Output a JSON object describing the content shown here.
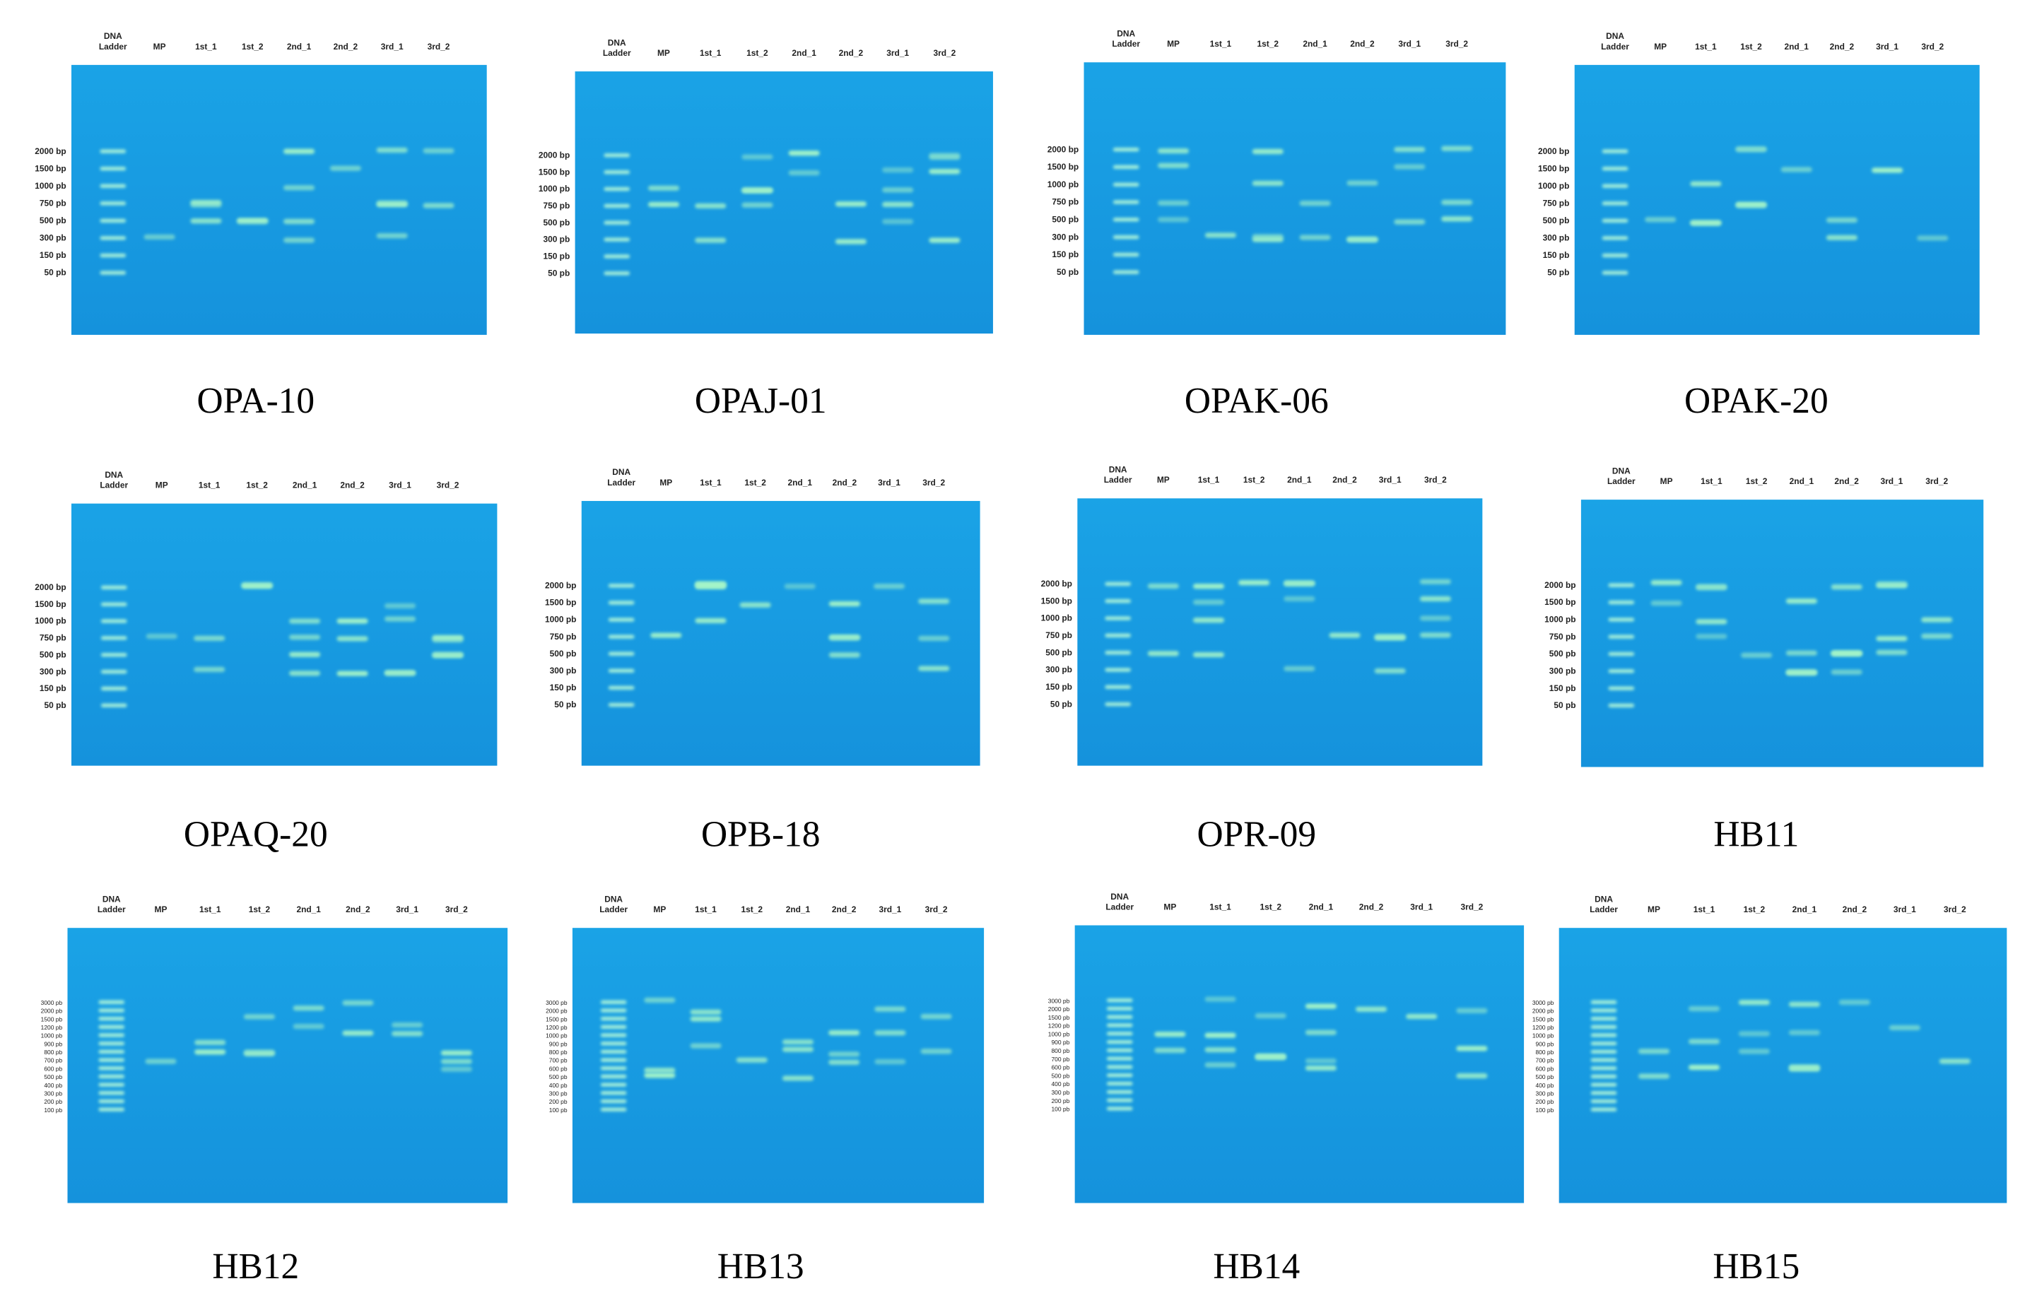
{
  "ladder_header": [
    "DNA",
    "Ladder"
  ],
  "panels": [
    {
      "caption": "OPA-10",
      "lanes": [
        "MP",
        "1st_1",
        "1st_2",
        "2nd_1",
        "2nd_2",
        "3rd_1",
        "3rd_2"
      ],
      "ladder": [
        "2000 bp",
        "1500 bp",
        "1000 pb",
        "750 pb",
        "500 pb",
        "300 pb",
        "150 pb",
        "50 pb"
      ]
    },
    {
      "caption": "OPAJ-01",
      "lanes": [
        "MP",
        "1st_1",
        "1st_2",
        "2nd_1",
        "2nd_2",
        "3rd_1",
        "3rd_2"
      ],
      "ladder": [
        "2000 bp",
        "1500 bp",
        "1000 pb",
        "750 pb",
        "500 pb",
        "300 pb",
        "150 pb",
        "50 pb"
      ]
    },
    {
      "caption": "OPAK-06",
      "lanes": [
        "MP",
        "1st_1",
        "1st_2",
        "2nd_1",
        "2nd_2",
        "3rd_1",
        "3rd_2"
      ],
      "ladder": [
        "2000 bp",
        "1500 bp",
        "1000 pb",
        "750 pb",
        "500 pb",
        "300 pb",
        "150 pb",
        "50 pb"
      ]
    },
    {
      "caption": "OPAK-20",
      "lanes": [
        "MP",
        "1st_1",
        "1st_2",
        "2nd_1",
        "2nd_2",
        "3rd_1",
        "3rd_2"
      ],
      "ladder": [
        "2000 bp",
        "1500 bp",
        "1000 pb",
        "750 pb",
        "500 pb",
        "300 pb",
        "150 pb",
        "50 pb"
      ]
    },
    {
      "caption": "OPAQ-20",
      "lanes": [
        "MP",
        "1st_1",
        "1st_2",
        "2nd_1",
        "2nd_2",
        "3rd_1",
        "3rd_2"
      ],
      "ladder": [
        "2000 bp",
        "1500 bp",
        "1000 pb",
        "750 pb",
        "500 pb",
        "300 pb",
        "150 pb",
        "50 pb"
      ]
    },
    {
      "caption": "OPB-18",
      "lanes": [
        "MP",
        "1st_1",
        "1st_2",
        "2nd_1",
        "2nd_2",
        "3rd_1",
        "3rd_2"
      ],
      "ladder": [
        "2000 bp",
        "1500 bp",
        "1000 pb",
        "750 pb",
        "500 pb",
        "300 pb",
        "150 pb",
        "50 pb"
      ]
    },
    {
      "caption": "OPR-09",
      "lanes": [
        "MP",
        "1st_1",
        "1st_2",
        "2nd_1",
        "2nd_2",
        "3rd_1",
        "3rd_2"
      ],
      "ladder": [
        "2000 bp",
        "1500 bp",
        "1000 pb",
        "750 pb",
        "500 pb",
        "300 pb",
        "150 pb",
        "50 pb"
      ]
    },
    {
      "caption": "HB11",
      "lanes": [
        "MP",
        "1st_1",
        "1st_2",
        "2nd_1",
        "2nd_2",
        "3rd_1",
        "3rd_2"
      ],
      "ladder": [
        "2000 bp",
        "1500 bp",
        "1000 pb",
        "750 pb",
        "500 pb",
        "300 pb",
        "150 pb",
        "50 pb"
      ]
    },
    {
      "caption": "HB12",
      "lanes": [
        "MP",
        "1st_1",
        "1st_2",
        "2nd_1",
        "2nd_2",
        "3rd_1",
        "3rd_2"
      ],
      "ladder": [
        "3000 pb",
        "2000 pb",
        "1500 pb",
        "1200 pb",
        "1000 pb",
        "900 pb",
        "800 pb",
        "700 pb",
        "600 pb",
        "500 pb",
        "400 pb",
        "300 pb",
        "200 pb",
        "100 pb"
      ]
    },
    {
      "caption": "HB13",
      "lanes": [
        "MP",
        "1st_1",
        "1st_2",
        "2nd_1",
        "2nd_2",
        "3rd_1",
        "3rd_2"
      ],
      "ladder": [
        "3000 pb",
        "2000 pb",
        "1500 pb",
        "1200 pb",
        "1000 pb",
        "900 pb",
        "800 pb",
        "700 pb",
        "600 pb",
        "500 pb",
        "400 pb",
        "300 pb",
        "200 pb",
        "100 pb"
      ]
    },
    {
      "caption": "HB14",
      "lanes": [
        "MP",
        "1st_1",
        "1st_2",
        "2nd_1",
        "2nd_2",
        "3rd_1",
        "3rd_2"
      ],
      "ladder": [
        "3000 pb",
        "2000 pb",
        "1500 pb",
        "1200 pb",
        "1000 pb",
        "900 pb",
        "800 pb",
        "700 pb",
        "600 pb",
        "500 pb",
        "400 pb",
        "300 pb",
        "200 pb",
        "100 pb"
      ]
    },
    {
      "caption": "HB15",
      "lanes": [
        "MP",
        "1st_1",
        "1st_2",
        "2nd_1",
        "2nd_2",
        "3rd_1",
        "3rd_2"
      ],
      "ladder": [
        "3000 pb",
        "2000 pb",
        "1500 pb",
        "1200 pb",
        "1000 pb",
        "900 pb",
        "800 pb",
        "700 pb",
        "600 pb",
        "500 pb",
        "400 pb",
        "300 pb",
        "200 pb",
        "100 pb"
      ]
    }
  ]
}
